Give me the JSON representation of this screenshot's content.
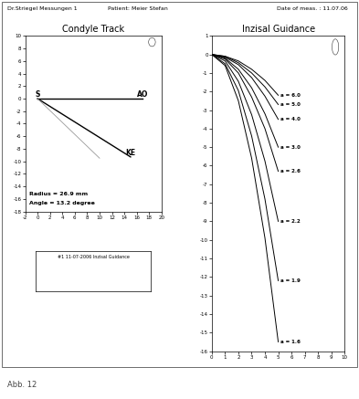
{
  "header": {
    "left": "Dr.Striegel Messungen 1",
    "middle": "Patient: Meier Stefan",
    "right": "Date of meas. : 11.07.06"
  },
  "chart_data": [
    {
      "type": "line",
      "title": "Condyle Track",
      "xlim": [
        -2,
        20
      ],
      "xticks": [
        -2,
        0,
        2,
        4,
        6,
        8,
        10,
        12,
        14,
        16,
        18,
        20
      ],
      "ylim": [
        -18,
        10
      ],
      "yticks": [
        10,
        8,
        6,
        4,
        2,
        0,
        -2,
        -4,
        -6,
        -8,
        -10,
        -12,
        -14,
        -16,
        -18
      ],
      "grid": false,
      "point_label": "S",
      "series": [
        {
          "name": "AO",
          "color": "#000000",
          "x": [
            0,
            17
          ],
          "values": [
            0,
            0
          ]
        },
        {
          "name": "KE",
          "color": "#000000",
          "x": [
            0,
            15
          ],
          "values": [
            0,
            -9.3
          ]
        },
        {
          "color": "#999999",
          "x": [
            0,
            10
          ],
          "values": [
            0,
            -9.5
          ]
        }
      ],
      "annotations": [
        "Radius = 26.9 mm",
        "Angle = 13.2 degree"
      ]
    },
    {
      "type": "line",
      "title": "Inzisal Guidance",
      "xlim": [
        0,
        10
      ],
      "xticks": [
        0,
        1,
        2,
        3,
        4,
        5,
        6,
        7,
        8,
        9,
        10
      ],
      "ylim": [
        -16,
        1
      ],
      "yticks": [
        1,
        0,
        -1,
        -2,
        -3,
        -4,
        -5,
        -6,
        -7,
        -8,
        -9,
        -10,
        -11,
        -12,
        -13,
        -14,
        -15,
        -16
      ],
      "grid": false,
      "x": [
        0,
        1,
        2,
        3,
        4,
        5
      ],
      "series": [
        {
          "name": "a = 6.0",
          "color": "#000000",
          "values": [
            0,
            -0.1,
            -0.35,
            -0.8,
            -1.4,
            -2.2
          ]
        },
        {
          "name": "a = 5.0",
          "color": "#000000",
          "values": [
            0,
            -0.1,
            -0.45,
            -1.0,
            -1.75,
            -2.7
          ]
        },
        {
          "name": "a = 4.0",
          "color": "#000000",
          "values": [
            0,
            -0.15,
            -0.55,
            -1.25,
            -2.25,
            -3.5
          ]
        },
        {
          "name": "a = 3.0",
          "color": "#000000",
          "values": [
            0,
            -0.2,
            -0.8,
            -1.8,
            -3.2,
            -5.0
          ]
        },
        {
          "name": "a = 2.6",
          "color": "#000000",
          "values": [
            0,
            -0.25,
            -1.0,
            -2.3,
            -4.0,
            -6.3
          ]
        },
        {
          "name": "a = 2.2",
          "color": "#000000",
          "values": [
            0,
            -0.35,
            -1.45,
            -3.25,
            -5.75,
            -9.0
          ]
        },
        {
          "name": "a = 1.9",
          "color": "#000000",
          "values": [
            0,
            -0.5,
            -1.95,
            -4.4,
            -7.8,
            -12.2
          ]
        },
        {
          "name": "a = 1.6",
          "color": "#000000",
          "values": [
            0,
            -0.6,
            -2.5,
            -5.6,
            -9.9,
            -15.5
          ]
        }
      ]
    }
  ],
  "legend_box": {
    "text": "#1 11-07-2006 Inzisal Guidance"
  },
  "caption": "Abb. 12"
}
